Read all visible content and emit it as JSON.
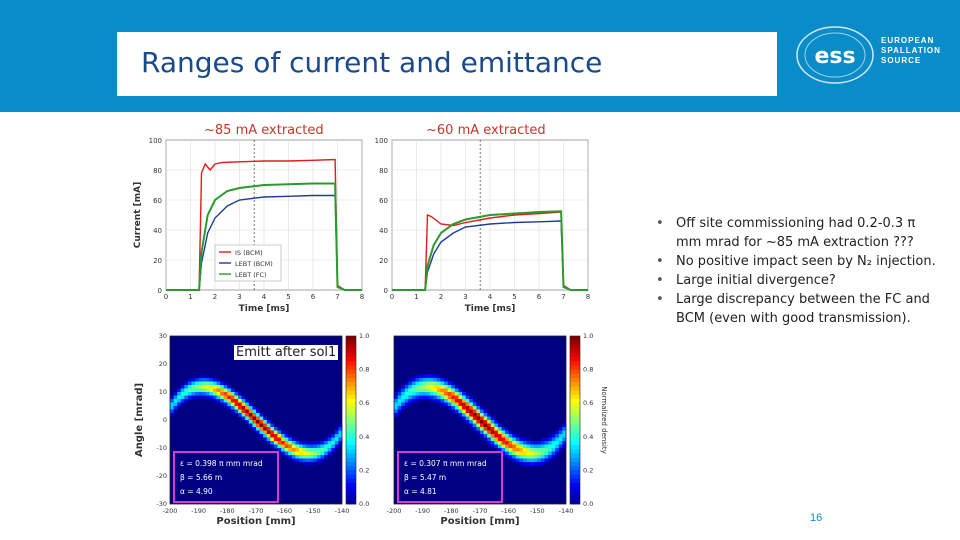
{
  "slide": {
    "title": "Ranges of current and emittance",
    "page_number": "16"
  },
  "logo": {
    "mark": "ess",
    "lines": [
      "EUROPEAN",
      "SPALLATION",
      "SOURCE"
    ]
  },
  "captions": {
    "left_top": "~85 mA extracted",
    "right_top": "~60 mA extracted",
    "emitt": "Emitt after sol1"
  },
  "bullets": [
    "Off site commissioning had 0.2-0.3 π mm mrad for ~85 mA extraction ???",
    "No positive impact seen by N₂ injection.",
    "Large initial divergence?",
    "Large discrepancy between the FC and BCM (even with good transmission)."
  ],
  "colors": {
    "header": "#0a8cc8",
    "caption": "#c0392b",
    "is_bcm": "#e41a1c",
    "lebt_bcm": "#1f3a9a",
    "lebt_fc": "#2a9a2a",
    "highlight_box": "#d040d0"
  },
  "chart_data": [
    {
      "type": "line",
      "xlabel": "Time [ms]",
      "ylabel": "Current [mA]",
      "xlim": [
        0,
        8
      ],
      "ylim": [
        0,
        100
      ],
      "x_ticks": [
        0,
        1,
        2,
        3,
        4,
        5,
        6,
        7,
        8
      ],
      "y_ticks": [
        0,
        20,
        40,
        60,
        80,
        100
      ],
      "legend_placement": "bottom-center",
      "marker_time": 3.6,
      "series": [
        {
          "name": "IS (BCM)",
          "x": [
            0,
            1.35,
            1.45,
            1.6,
            1.8,
            2.0,
            2.3,
            3.0,
            4.0,
            5.0,
            6.0,
            6.9,
            7.0,
            7.3,
            8.0
          ],
          "values": [
            0,
            0,
            78,
            84,
            80,
            84,
            85,
            85.5,
            86,
            86,
            86.5,
            87,
            3,
            0,
            0
          ]
        },
        {
          "name": "LEBT (BCM)",
          "x": [
            0,
            1.35,
            1.45,
            1.7,
            2.0,
            2.5,
            3.0,
            4.0,
            5.0,
            6.0,
            6.9,
            7.0,
            7.3,
            8.0
          ],
          "values": [
            0,
            0,
            18,
            38,
            48,
            56,
            60,
            62,
            62.5,
            63,
            63,
            2,
            0,
            0
          ]
        },
        {
          "name": "LEBT (FC)",
          "x": [
            0,
            1.35,
            1.45,
            1.7,
            2.0,
            2.5,
            3.0,
            4.0,
            5.0,
            6.0,
            6.9,
            7.0,
            7.3,
            8.0
          ],
          "values": [
            0,
            0,
            25,
            50,
            60,
            66,
            68,
            70,
            70.5,
            71,
            71,
            2,
            0,
            0
          ]
        }
      ]
    },
    {
      "type": "line",
      "xlabel": "Time [ms]",
      "ylabel": "",
      "xlim": [
        0,
        8
      ],
      "ylim": [
        0,
        100
      ],
      "x_ticks": [
        0,
        1,
        2,
        3,
        4,
        5,
        6,
        7,
        8
      ],
      "y_ticks": [
        0,
        20,
        40,
        60,
        80,
        100
      ],
      "marker_time": 3.6,
      "series": [
        {
          "x": [
            0,
            1.35,
            1.45,
            1.6,
            2.0,
            2.5,
            3.0,
            4.0,
            5.0,
            6.0,
            6.9,
            7.0,
            7.3,
            8.0
          ],
          "values": [
            0,
            0,
            50,
            49,
            44,
            43,
            45,
            48,
            50,
            51,
            52,
            3,
            0,
            0
          ]
        },
        {
          "x": [
            0,
            1.35,
            1.45,
            1.7,
            2.0,
            2.5,
            3.0,
            4.0,
            5.0,
            6.0,
            6.9,
            7.0,
            7.3,
            8.0
          ],
          "values": [
            0,
            0,
            12,
            24,
            32,
            38,
            42,
            44,
            45,
            45.5,
            46,
            2,
            0,
            0
          ]
        },
        {
          "x": [
            0,
            1.35,
            1.45,
            1.7,
            2.0,
            2.5,
            3.0,
            4.0,
            5.0,
            6.0,
            6.9,
            7.0,
            7.3,
            8.0
          ],
          "values": [
            0,
            0,
            16,
            30,
            38,
            44,
            47,
            50,
            51,
            52,
            52.5,
            2,
            0,
            0
          ]
        }
      ]
    },
    {
      "type": "heatmap",
      "xlabel": "Position [mm]",
      "ylabel": "Angle [mrad]",
      "xlim": [
        -200,
        -140
      ],
      "ylim": [
        -30,
        30
      ],
      "x_ticks": [
        -200,
        -190,
        -180,
        -170,
        -160,
        -150,
        -140
      ],
      "y_ticks": [
        -30,
        -20,
        -10,
        0,
        10,
        20,
        30
      ],
      "colorbar_ticks": [
        0.0,
        0.2,
        0.4,
        0.6,
        0.8,
        1.0
      ],
      "annotation": [
        "ε = 0.398 π mm mrad",
        "β = 5.66 m",
        "α = 4.90"
      ]
    },
    {
      "type": "heatmap",
      "xlabel": "Position [mm]",
      "ylabel": "",
      "colorbar_label": "Normalized density",
      "xlim": [
        -200,
        -140
      ],
      "ylim": [
        -30,
        30
      ],
      "x_ticks": [
        -200,
        -190,
        -180,
        -170,
        -160,
        -150,
        -140
      ],
      "y_ticks": [
        -30,
        -20,
        -10,
        0,
        10,
        20,
        30
      ],
      "colorbar_ticks": [
        0.0,
        0.2,
        0.4,
        0.6,
        0.8,
        1.0
      ],
      "annotation": [
        "ε = 0.307 π mm mrad",
        "β = 5.47 m",
        "α = 4.81"
      ]
    }
  ]
}
